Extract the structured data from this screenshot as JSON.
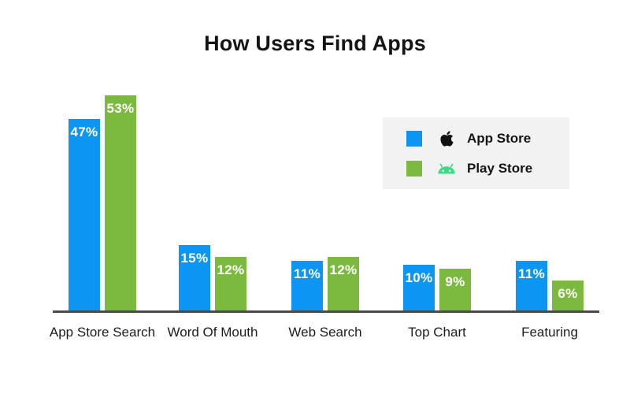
{
  "chart_data": {
    "type": "bar",
    "title": "How Users Find Apps",
    "categories": [
      "App Store Search",
      "Word Of Mouth",
      "Web Search",
      "Top Chart",
      "Featuring"
    ],
    "series": [
      {
        "name": "App Store",
        "color": "#0c95f2",
        "values": [
          47,
          15,
          11,
          10,
          11
        ]
      },
      {
        "name": "Play Store",
        "color": "#7cba3f",
        "values": [
          53,
          12,
          12,
          9,
          6
        ]
      }
    ],
    "value_suffix": "%",
    "ylim": [
      0,
      60
    ],
    "grid": false,
    "legend_position": "upper right"
  },
  "legend": {
    "background": "#f2f2f2",
    "items": [
      {
        "label": "App Store",
        "swatch_color": "#0c95f2",
        "icon": "apple-logo-icon",
        "icon_color": "#111111"
      },
      {
        "label": "Play Store",
        "swatch_color": "#7cba3f",
        "icon": "android-robot-icon",
        "icon_color": "#3ddc84"
      }
    ]
  },
  "colors": {
    "axis": "#4a4a4a",
    "title_text": "#141414",
    "axis_label_text": "#1c1c1c",
    "value_label_text": "#ffffff"
  }
}
